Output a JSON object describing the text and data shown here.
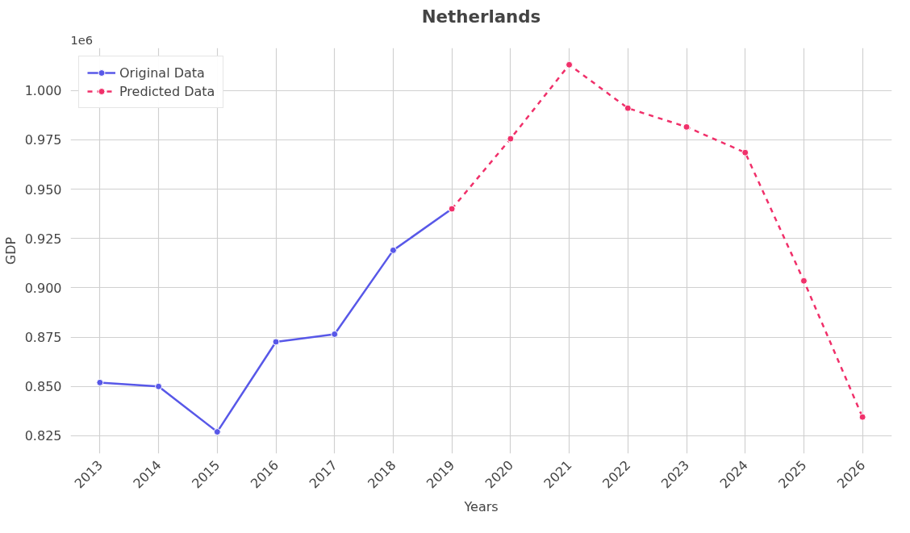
{
  "chart_data": {
    "type": "line",
    "title": "Netherlands",
    "xlabel": "Years",
    "ylabel": "GDP",
    "annotations": [
      "1e6"
    ],
    "xlim": [
      2012.5,
      2026.5
    ],
    "xticks": [
      2013,
      2014,
      2015,
      2016,
      2017,
      2018,
      2019,
      2020,
      2021,
      2022,
      2023,
      2024,
      2025,
      2026
    ],
    "ylim": [
      0.816,
      1.0215
    ],
    "yticks": [
      {
        "value": 0.825,
        "label": "0.825"
      },
      {
        "value": 0.85,
        "label": "0.850"
      },
      {
        "value": 0.875,
        "label": "0.875"
      },
      {
        "value": 0.9,
        "label": "0.900"
      },
      {
        "value": 0.925,
        "label": "0.925"
      },
      {
        "value": 0.95,
        "label": "0.950"
      },
      {
        "value": 0.975,
        "label": "0.975"
      },
      {
        "value": 1.0,
        "label": "1.000"
      }
    ],
    "grid": true,
    "legend": "top left",
    "marker": "circle",
    "series": [
      {
        "name": "Original Data",
        "color": "#5858e8",
        "line_style": "solid",
        "x": [
          2013,
          2014,
          2015,
          2016,
          2017,
          2018,
          2019
        ],
        "values": [
          0.852,
          0.85,
          0.827,
          0.8726,
          0.8765,
          0.919,
          0.94
        ]
      },
      {
        "name": "Predicted Data",
        "color": "#f0306a",
        "line_style": "dashed",
        "x": [
          2019,
          2020,
          2021,
          2022,
          2023,
          2024,
          2025,
          2026
        ],
        "values": [
          0.94,
          0.9755,
          1.013,
          0.991,
          0.9815,
          0.9685,
          0.9035,
          0.8345
        ]
      }
    ]
  }
}
